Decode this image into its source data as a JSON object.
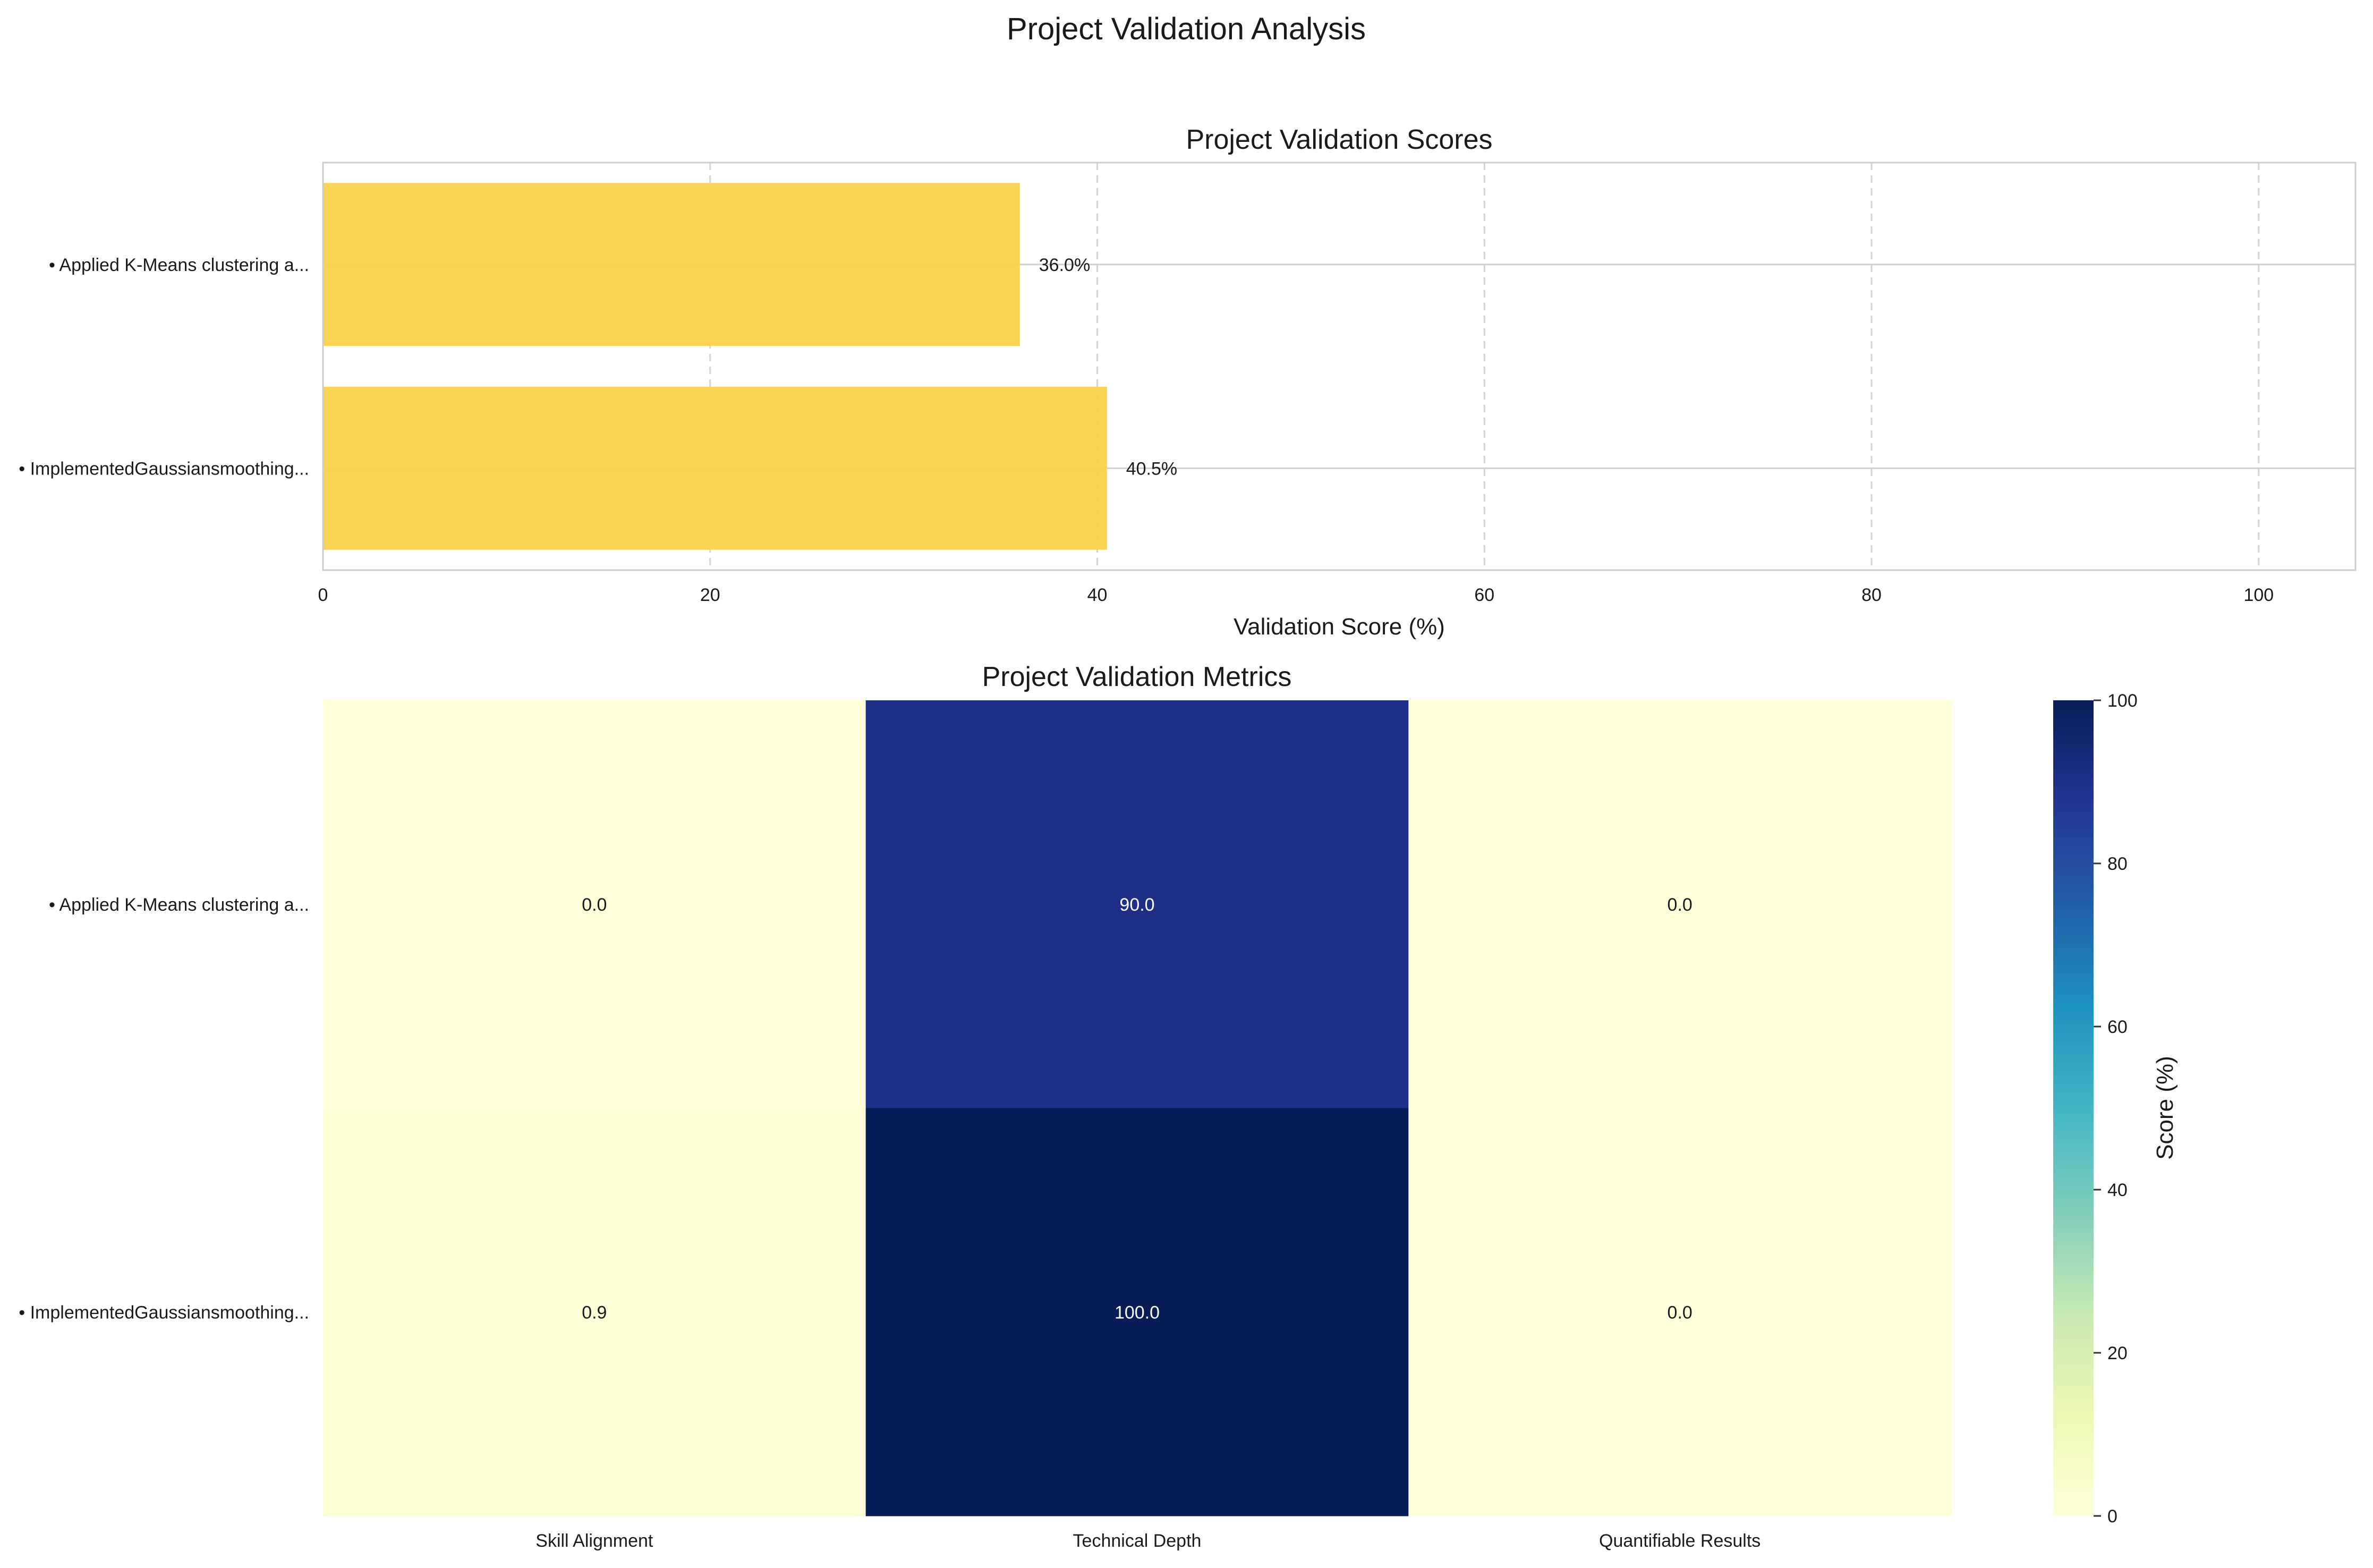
{
  "figure": {
    "title": "Project Validation Analysis"
  },
  "chart_data": [
    {
      "type": "bar",
      "orientation": "horizontal",
      "title": "Project Validation Scores",
      "xlabel": "Validation Score (%)",
      "ylabel": "",
      "xlim": [
        0,
        105
      ],
      "xticks": [
        0,
        20,
        40,
        60,
        80,
        100
      ],
      "xtick_labels": [
        "0",
        "20",
        "40",
        "60",
        "80",
        "100"
      ],
      "grid": true,
      "categories": [
        "• Applied K-Means clustering a...",
        "• ImplementedGaussiansmoothing..."
      ],
      "values": [
        36.0,
        40.5
      ],
      "value_labels": [
        "36.0%",
        "40.5%"
      ],
      "bar_color": "#fbd14b"
    },
    {
      "type": "heatmap",
      "title": "Project Validation Metrics",
      "xlabel": "",
      "ylabel": "",
      "rows": [
        "• Applied K-Means clustering a...",
        "• ImplementedGaussiansmoothing..."
      ],
      "columns": [
        "Skill Alignment",
        "Technical Depth",
        "Quantifiable Results"
      ],
      "values": [
        [
          0.0,
          90.0,
          0.0
        ],
        [
          0.9,
          100.0,
          0.0
        ]
      ],
      "cell_labels": [
        [
          "0.0",
          "90.0",
          "0.0"
        ],
        [
          "0.9",
          "100.0",
          "0.0"
        ]
      ],
      "colormap": "YlGnBu",
      "vmin": 0,
      "vmax": 100,
      "colorbar": {
        "label": "Score (%)",
        "ticks": [
          0,
          20,
          40,
          60,
          80,
          100
        ],
        "tick_labels": [
          "0",
          "20",
          "40",
          "60",
          "80",
          "100"
        ]
      }
    }
  ]
}
